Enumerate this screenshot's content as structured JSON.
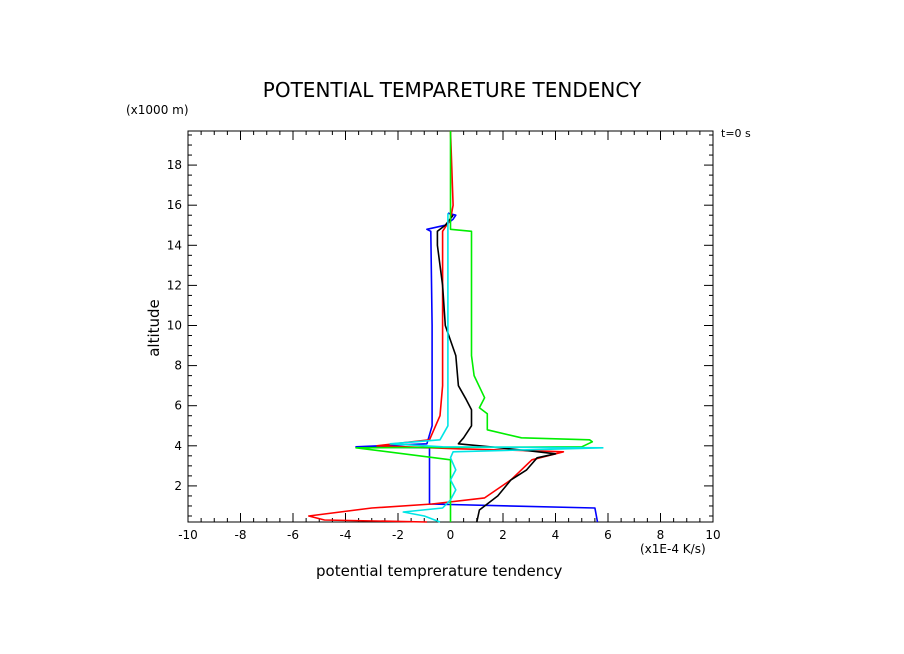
{
  "chart_data": {
    "type": "line",
    "title": "POTENTIAL TEMPARETURE TENDENCY",
    "xlabel": "potential temprerature tendency",
    "ylabel": "altitude",
    "x_unit": "(x1E-4 K/s)",
    "y_unit": "(x1000 m)",
    "time_label": "t=0 s",
    "xlim": [
      -10,
      10
    ],
    "ylim": [
      0.2,
      19.7
    ],
    "x_ticks": [
      -10,
      -8,
      -6,
      -4,
      -2,
      0,
      2,
      4,
      6,
      8,
      10
    ],
    "x_tick_labels": [
      "-10",
      "-8",
      "-6",
      "-4",
      "-2",
      "0",
      "2",
      "4",
      "6",
      "8",
      "10"
    ],
    "y_ticks": [
      2,
      4,
      6,
      8,
      10,
      12,
      14,
      16,
      18
    ],
    "y_tick_labels": [
      "2",
      "4",
      "6",
      "8",
      "10",
      "12",
      "14",
      "16",
      "18"
    ],
    "grid": false,
    "series": [
      {
        "color": "#0000ff",
        "points": [
          [
            5.6,
            0.2
          ],
          [
            5.5,
            0.9
          ],
          [
            -0.8,
            1.1
          ],
          [
            -0.8,
            3.9
          ],
          [
            -3.6,
            3.95
          ],
          [
            -0.9,
            4.1
          ],
          [
            -0.7,
            5.0
          ],
          [
            -0.7,
            10.0
          ],
          [
            -0.75,
            14.7
          ],
          [
            -0.9,
            14.8
          ],
          [
            -0.2,
            15.0
          ],
          [
            0.1,
            15.3
          ],
          [
            0.2,
            15.5
          ],
          [
            -0.1,
            15.6
          ]
        ]
      },
      {
        "color": "#ff0000",
        "points": [
          [
            -0.9,
            0.2
          ],
          [
            -4.8,
            0.3
          ],
          [
            -5.4,
            0.5
          ],
          [
            -3.0,
            0.9
          ],
          [
            -0.7,
            1.1
          ],
          [
            1.3,
            1.4
          ],
          [
            2.3,
            2.3
          ],
          [
            3.1,
            3.3
          ],
          [
            4.3,
            3.7
          ],
          [
            3.2,
            3.75
          ],
          [
            0.3,
            3.85
          ],
          [
            -2.8,
            4.0
          ],
          [
            -0.8,
            4.3
          ],
          [
            -0.4,
            5.5
          ],
          [
            -0.3,
            7.0
          ],
          [
            -0.3,
            14.7
          ],
          [
            0.0,
            15.3
          ],
          [
            0.1,
            16.0
          ],
          [
            0.0,
            19.7
          ]
        ]
      },
      {
        "color": "#000000",
        "points": [
          [
            1.0,
            0.2
          ],
          [
            1.1,
            0.8
          ],
          [
            1.8,
            1.5
          ],
          [
            2.3,
            2.3
          ],
          [
            2.9,
            2.8
          ],
          [
            3.3,
            3.4
          ],
          [
            4.0,
            3.6
          ],
          [
            3.0,
            3.75
          ],
          [
            1.5,
            3.95
          ],
          [
            0.3,
            4.1
          ],
          [
            0.5,
            4.4
          ],
          [
            0.8,
            5.0
          ],
          [
            0.8,
            5.8
          ],
          [
            0.6,
            6.3
          ],
          [
            0.3,
            7.0
          ],
          [
            0.2,
            8.5
          ],
          [
            -0.2,
            10.0
          ],
          [
            -0.3,
            12.0
          ],
          [
            -0.5,
            14.0
          ],
          [
            -0.5,
            14.7
          ],
          [
            -0.2,
            15.0
          ],
          [
            0.1,
            15.5
          ]
        ]
      },
      {
        "color": "#00ee00",
        "points": [
          [
            0.0,
            0.2
          ],
          [
            0.0,
            3.3
          ],
          [
            -3.6,
            3.9
          ],
          [
            5.0,
            3.95
          ],
          [
            5.4,
            4.2
          ],
          [
            5.3,
            4.3
          ],
          [
            2.7,
            4.4
          ],
          [
            1.4,
            4.8
          ],
          [
            1.4,
            5.6
          ],
          [
            1.1,
            5.9
          ],
          [
            1.3,
            6.4
          ],
          [
            0.9,
            7.5
          ],
          [
            0.8,
            8.5
          ],
          [
            0.8,
            14.7
          ],
          [
            0.0,
            14.8
          ],
          [
            0.0,
            19.7
          ]
        ]
      },
      {
        "color": "#00e5e5",
        "points": [
          [
            -0.4,
            0.2
          ],
          [
            -1.0,
            0.5
          ],
          [
            -1.8,
            0.7
          ],
          [
            -0.3,
            0.9
          ],
          [
            0.0,
            1.3
          ],
          [
            0.2,
            1.8
          ],
          [
            0.0,
            2.3
          ],
          [
            0.2,
            2.8
          ],
          [
            0.0,
            3.4
          ],
          [
            0.1,
            3.7
          ],
          [
            5.8,
            3.9
          ],
          [
            -0.3,
            3.95
          ],
          [
            -2.3,
            4.1
          ],
          [
            -0.4,
            4.3
          ],
          [
            -0.1,
            5.0
          ],
          [
            -0.1,
            14.7
          ],
          [
            -0.1,
            15.6
          ]
        ]
      }
    ]
  }
}
